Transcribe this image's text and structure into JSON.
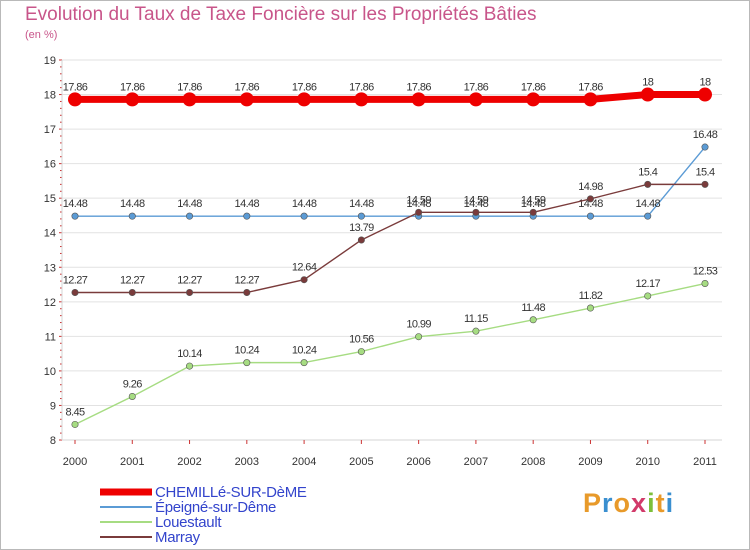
{
  "title": "Evolution du Taux de Taxe Foncière sur les Propriétés Bâties",
  "unit_label": "(en %)",
  "logo": {
    "letters": [
      "P",
      "r",
      "o",
      "x",
      "i",
      "t",
      "i"
    ],
    "colors": [
      "#e89a2a",
      "#3a8fd0",
      "#e89a2a",
      "#d23a6a",
      "#7cbf3a",
      "#e89a2a",
      "#3a8fd0"
    ]
  },
  "chart_data": {
    "type": "line",
    "title": "Evolution du Taux de Taxe Foncière sur les Propriétés Bâties",
    "ylabel": "(en %)",
    "xlabel": "",
    "ylim": [
      8,
      19
    ],
    "yticks": [
      "8",
      "9",
      "10",
      "11",
      "12",
      "13",
      "14",
      "15",
      "16",
      "17",
      "18",
      "19"
    ],
    "x": [
      "2000",
      "2001",
      "2002",
      "2003",
      "2004",
      "2005",
      "2006",
      "2007",
      "2008",
      "2009",
      "2010",
      "2011"
    ],
    "series": [
      {
        "name": "CHEMILLé-SUR-DèME",
        "color": "#ee0000",
        "values": [
          17.86,
          17.86,
          17.86,
          17.86,
          17.86,
          17.86,
          17.86,
          17.86,
          17.86,
          17.86,
          18,
          18
        ],
        "labels": [
          "17.86",
          "17.86",
          "17.86",
          "17.86",
          "17.86",
          "17.86",
          "17.86",
          "17.86",
          "17.86",
          "17.86",
          "18",
          "18"
        ]
      },
      {
        "name": "Épeigné-sur-Dême",
        "color": "#5b9bd5",
        "values": [
          14.48,
          14.48,
          14.48,
          14.48,
          14.48,
          14.48,
          14.48,
          14.48,
          14.48,
          14.48,
          14.48,
          16.48
        ],
        "labels": [
          "14.48",
          "14.48",
          "14.48",
          "14.48",
          "14.48",
          "14.48",
          "14.48",
          "14.48",
          "14.48",
          "14.48",
          "14.48",
          "16.48"
        ]
      },
      {
        "name": "Louestault",
        "color": "#a6dc82",
        "values": [
          8.45,
          9.26,
          10.14,
          10.24,
          10.24,
          10.56,
          10.99,
          11.15,
          11.48,
          11.82,
          12.17,
          12.53
        ],
        "labels": [
          "8.45",
          "9.26",
          "10.14",
          "10.24",
          "10.24",
          "10.56",
          "10.99",
          "11.15",
          "11.48",
          "11.82",
          "12.17",
          "12.53"
        ]
      },
      {
        "name": "Marray",
        "color": "#7a3b3b",
        "values": [
          12.27,
          12.27,
          12.27,
          12.27,
          12.64,
          13.79,
          14.59,
          14.59,
          14.59,
          14.98,
          15.4,
          15.4
        ],
        "labels": [
          "12.27",
          "12.27",
          "12.27",
          "12.27",
          "12.64",
          "13.79",
          "14.59",
          "14.59",
          "14.59",
          "14.98",
          "15.4",
          "15.4"
        ]
      }
    ]
  }
}
